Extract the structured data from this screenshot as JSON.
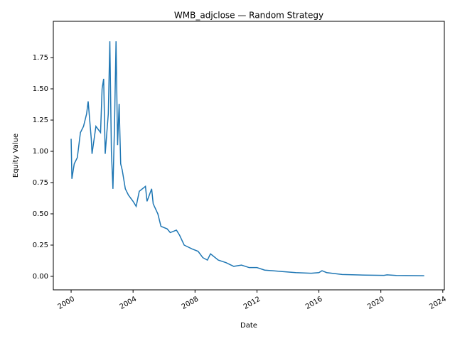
{
  "chart_data": {
    "type": "line",
    "title": "WMB_adjclose — Random Strategy",
    "x_label": "Date",
    "y_label": "Equity Value",
    "x": [
      2000.0,
      2000.05,
      2000.2,
      2000.4,
      2000.6,
      2000.8,
      2001.0,
      2001.1,
      2001.3,
      2001.35,
      2001.6,
      2001.9,
      2002.0,
      2002.1,
      2002.2,
      2002.4,
      2002.5,
      2002.6,
      2002.7,
      2002.8,
      2002.9,
      2003.0,
      2003.1,
      2003.2,
      2003.3,
      2003.5,
      2003.7,
      2004.0,
      2004.2,
      2004.4,
      2004.8,
      2004.9,
      2005.2,
      2005.3,
      2005.6,
      2005.8,
      2006.2,
      2006.4,
      2006.8,
      2007.0,
      2007.3,
      2007.8,
      2008.2,
      2008.5,
      2008.8,
      2009.0,
      2009.5,
      2010.0,
      2010.5,
      2011.0,
      2011.5,
      2012.0,
      2012.5,
      2013.5,
      2014.5,
      2015.5,
      2016.0,
      2016.2,
      2016.5,
      2017.5,
      2019.0,
      2020.2,
      2020.4,
      2021.0,
      2022.8
    ],
    "series": [
      {
        "name": "Equity",
        "color": "#1f77b4",
        "values": [
          1.1,
          0.78,
          0.9,
          0.95,
          1.15,
          1.2,
          1.3,
          1.4,
          1.1,
          0.98,
          1.2,
          1.15,
          1.5,
          1.58,
          0.98,
          1.3,
          1.88,
          1.0,
          0.7,
          1.2,
          1.88,
          1.05,
          1.38,
          0.9,
          0.85,
          0.7,
          0.65,
          0.6,
          0.56,
          0.68,
          0.72,
          0.6,
          0.7,
          0.58,
          0.5,
          0.4,
          0.38,
          0.35,
          0.37,
          0.33,
          0.25,
          0.22,
          0.2,
          0.15,
          0.13,
          0.18,
          0.13,
          0.11,
          0.08,
          0.09,
          0.07,
          0.07,
          0.05,
          0.04,
          0.03,
          0.025,
          0.03,
          0.045,
          0.03,
          0.015,
          0.01,
          0.008,
          0.012,
          0.007,
          0.005
        ]
      }
    ],
    "xlim": [
      1998.85,
      2024.1
    ],
    "xticks": [
      2000,
      2004,
      2008,
      2012,
      2016,
      2020,
      2024
    ],
    "ylim": [
      -0.108,
      2.04
    ],
    "yticks": [
      {
        "value": 0,
        "label": "0.00"
      },
      {
        "value": 0.25,
        "label": "0.25"
      },
      {
        "value": 0.5,
        "label": "0.50"
      },
      {
        "value": 0.75,
        "label": "0.75"
      },
      {
        "value": 1,
        "label": "1.00"
      },
      {
        "value": 1.25,
        "label": "1.25"
      },
      {
        "value": 1.5,
        "label": "1.50"
      },
      {
        "value": 1.75,
        "label": "1.75"
      }
    ],
    "grid": false
  }
}
